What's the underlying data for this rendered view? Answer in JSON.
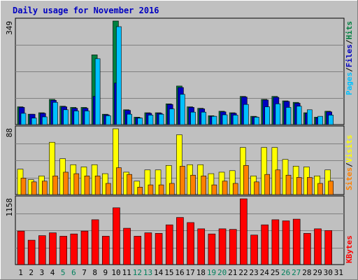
{
  "title": "Daily usage for November 2016",
  "colors": {
    "background": "#c0c0c0",
    "grid": "#808080",
    "title_text": "#0000c0",
    "hits": "#008040",
    "files": "#0000c0",
    "pages": "#00c0ff",
    "visits": "#ffff00",
    "sites": "#ff8000",
    "kbytes": "#ff0000",
    "weekend_day": "#00805c"
  },
  "chart_data": [
    {
      "type": "bar",
      "panel": "hits-files-pages",
      "categories": [
        "1",
        "2",
        "3",
        "4",
        "5",
        "6",
        "7",
        "8",
        "9",
        "10",
        "11",
        "12",
        "13",
        "14",
        "15",
        "16",
        "17",
        "18",
        "19",
        "20",
        "21",
        "22",
        "23",
        "24",
        "25",
        "26",
        "27",
        "28",
        "29",
        "30",
        "31"
      ],
      "weekend_days": [
        "5",
        "6",
        "12",
        "13",
        "19",
        "20",
        "26",
        "27"
      ],
      "ymax_label": "349",
      "ylim": [
        0,
        349
      ],
      "grid": true,
      "legend_words": {
        "pages": "Pages",
        "files": "Files",
        "hits": "Hits"
      },
      "legend_sep": "/",
      "series": [
        {
          "name": "Hits",
          "values": [
            60,
            35,
            40,
            85,
            62,
            58,
            58,
            235,
            35,
            349,
            50,
            25,
            40,
            40,
            70,
            130,
            60,
            55,
            30,
            45,
            40,
            95,
            28,
            85,
            95,
            80,
            75,
            40,
            25,
            45,
            0
          ]
        },
        {
          "name": "Files",
          "values": [
            58,
            35,
            38,
            82,
            60,
            55,
            55,
            95,
            33,
            140,
            48,
            23,
            38,
            38,
            68,
            125,
            58,
            53,
            28,
            43,
            38,
            93,
            26,
            83,
            92,
            78,
            72,
            38,
            23,
            43,
            0
          ]
        },
        {
          "name": "Pages",
          "values": [
            38,
            22,
            26,
            75,
            50,
            46,
            46,
            222,
            30,
            330,
            35,
            22,
            32,
            35,
            53,
            102,
            42,
            42,
            28,
            33,
            32,
            68,
            25,
            60,
            70,
            58,
            62,
            50,
            28,
            32,
            0
          ]
        }
      ]
    },
    {
      "type": "bar",
      "panel": "visits-sites",
      "categories": [
        "1",
        "2",
        "3",
        "4",
        "5",
        "6",
        "7",
        "8",
        "9",
        "10",
        "11",
        "12",
        "13",
        "14",
        "15",
        "16",
        "17",
        "18",
        "19",
        "20",
        "21",
        "22",
        "23",
        "24",
        "25",
        "26",
        "27",
        "28",
        "29",
        "30",
        "31"
      ],
      "ymax_label": "88",
      "ylim": [
        0,
        88
      ],
      "grid": true,
      "legend_words": {
        "sites": "Sites",
        "visits": "Visits"
      },
      "legend_sep": "/",
      "series": [
        {
          "name": "Visits",
          "values": [
            34,
            20,
            25,
            70,
            48,
            40,
            37,
            40,
            28,
            88,
            30,
            18,
            33,
            33,
            39,
            80,
            40,
            40,
            28,
            30,
            32,
            63,
            25,
            63,
            63,
            47,
            38,
            37,
            25,
            33,
            0
          ]
        },
        {
          "name": "Sites",
          "values": [
            22,
            17,
            18,
            25,
            30,
            28,
            25,
            25,
            15,
            36,
            27,
            10,
            13,
            13,
            15,
            38,
            26,
            25,
            13,
            18,
            15,
            39,
            17,
            27,
            33,
            26,
            23,
            23,
            15,
            18,
            0
          ]
        }
      ]
    },
    {
      "type": "bar",
      "panel": "kbytes",
      "categories": [
        "1",
        "2",
        "3",
        "4",
        "5",
        "6",
        "7",
        "8",
        "9",
        "10",
        "11",
        "12",
        "13",
        "14",
        "15",
        "16",
        "17",
        "18",
        "19",
        "20",
        "21",
        "22",
        "23",
        "24",
        "25",
        "26",
        "27",
        "28",
        "29",
        "30",
        "31"
      ],
      "ymax_label": "1158",
      "ylim": [
        0,
        1158
      ],
      "grid": true,
      "legend_words": {
        "kbytes": "KBytes"
      },
      "series": [
        {
          "name": "KBytes",
          "values": [
            590,
            430,
            510,
            560,
            500,
            540,
            590,
            790,
            500,
            1000,
            640,
            500,
            560,
            550,
            700,
            830,
            740,
            630,
            540,
            630,
            620,
            1158,
            520,
            700,
            790,
            770,
            800,
            550,
            630,
            600,
            0
          ]
        }
      ]
    }
  ]
}
